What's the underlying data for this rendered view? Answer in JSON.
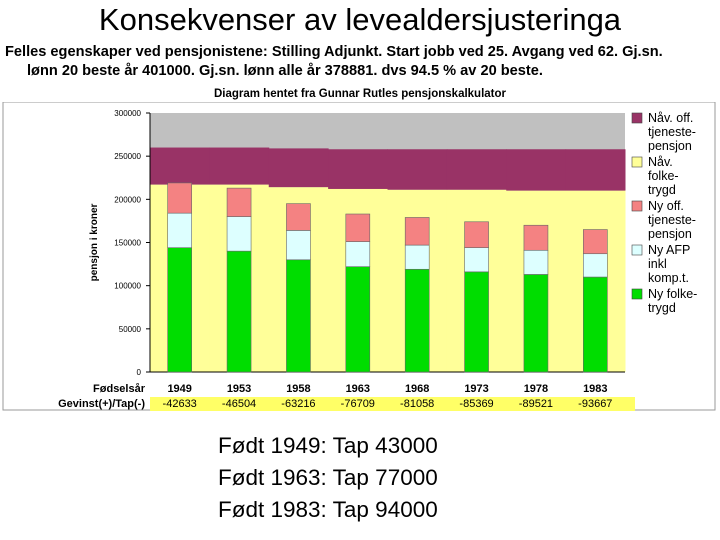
{
  "page": {
    "title": "Konsekvenser av levealdersjusteringa",
    "subtitle_line1": "Felles egenskaper ved pensjonistene: Stilling Adjunkt. Start jobb ved 25. Avgang ved 62. Gj.sn.",
    "subtitle_line2": "lønn 20 beste år 401000. Gj.sn. lønn alle år 378881. dvs 94.5 % av 20 beste.",
    "source": "Diagram hentet fra Gunnar Rutles pensjonskalkulator",
    "notes": [
      "Født 1949: Tap 43000",
      "Født 1963: Tap 77000",
      "Født 1983: Tap 94000"
    ]
  },
  "chart_data": {
    "type": "bar",
    "stacked": true,
    "title": "",
    "ylabel": "pensjon i kroner",
    "ylim": [
      0,
      300000
    ],
    "yticks": [
      0,
      50000,
      100000,
      150000,
      200000,
      250000,
      300000
    ],
    "row_label_birth": "Fødselsår",
    "row_label_gain": "Gevinst(+)/Tap(-)",
    "categories": [
      "1949",
      "1953",
      "1958",
      "1963",
      "1968",
      "1973",
      "1978",
      "1983"
    ],
    "gain_loss": [
      "-42633",
      "-46504",
      "-63216",
      "-76709",
      "-81058",
      "-85369",
      "-89521",
      "-93667"
    ],
    "background_band_tops": {
      "nav_folketrygd": [
        217000,
        217000,
        214000,
        212000,
        211000,
        211000,
        210000,
        210000
      ],
      "nav_off_tjenestepensjon": [
        260000,
        260000,
        259000,
        258000,
        258000,
        258000,
        258000,
        258000
      ]
    },
    "series": [
      {
        "name": "Ny folke-trygd",
        "color": "#00dd00",
        "values": [
          144000,
          140000,
          130000,
          122000,
          119000,
          116000,
          113000,
          110000
        ]
      },
      {
        "name": "Ny AFP inkl komp.t.",
        "color": "#ddffff",
        "values": [
          40000,
          40000,
          34000,
          29000,
          28000,
          28000,
          28000,
          27000
        ]
      },
      {
        "name": "Ny off. tjeneste-pensjon",
        "color": "#f48282",
        "values": [
          35000,
          33000,
          31000,
          32000,
          32000,
          30000,
          29000,
          28000
        ]
      }
    ],
    "legend": [
      {
        "name": "Nåv. off. tjeneste-pensjon",
        "color": "#993366",
        "lines": [
          "Nåv. off.",
          "tjeneste-",
          "pensjon"
        ]
      },
      {
        "name": "Nåv. folke-trygd",
        "color": "#ffff99",
        "lines": [
          "Nåv.",
          "folke-",
          "trygd"
        ]
      },
      {
        "name": "Ny off. tjeneste-pensjon",
        "color": "#f48282",
        "lines": [
          "Ny off.",
          "tjeneste-",
          "pensjon"
        ]
      },
      {
        "name": "Ny AFP inkl komp.t.",
        "color": "#ddffff",
        "lines": [
          "Ny AFP",
          "inkl",
          "komp.t."
        ]
      },
      {
        "name": "Ny folke-trygd",
        "color": "#00dd00",
        "lines": [
          "Ny folke-",
          "trygd"
        ]
      }
    ],
    "colors": {
      "plot_top": "#c0c0c0",
      "highlight_row": "#ffff66"
    },
    "legend_position": "right",
    "grid": false
  }
}
